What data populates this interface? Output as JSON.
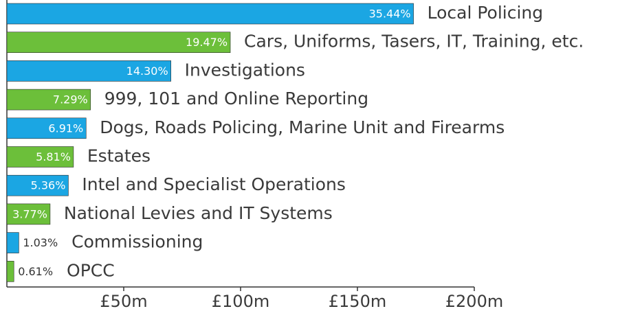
{
  "chart_data": {
    "type": "barh",
    "categories": [
      "Local Policing",
      "Cars, Uniforms, Tasers, IT, Training, etc.",
      "Investigations",
      "999, 101 and Online Reporting",
      "Dogs, Roads Policing, Marine Unit and Firearms",
      "Estates",
      "Intel and Specialist Operations",
      "National Levies and IT Systems",
      "Commissioning",
      "OPCC"
    ],
    "values": [
      174,
      95.6,
      70.2,
      35.8,
      33.9,
      28.5,
      26.3,
      18.5,
      5.1,
      3.0
    ],
    "value_labels": [
      "35.44%",
      "19.47%",
      "14.30%",
      "7.29%",
      "6.91%",
      "5.81%",
      "5.36%",
      "3.77%",
      "1.03%",
      "0.61%"
    ],
    "colors": [
      "#1ba6e3",
      "#6cbf3a",
      "#1ba6e3",
      "#6cbf3a",
      "#1ba6e3",
      "#6cbf3a",
      "#1ba6e3",
      "#6cbf3a",
      "#1ba6e3",
      "#6cbf3a"
    ],
    "xlim": [
      0,
      200
    ],
    "xticks": [
      {
        "value": 50,
        "label": "£50m"
      },
      {
        "value": 100,
        "label": "£100m"
      },
      {
        "value": 150,
        "label": "£150m"
      },
      {
        "value": 200,
        "label": "£200m"
      }
    ]
  }
}
